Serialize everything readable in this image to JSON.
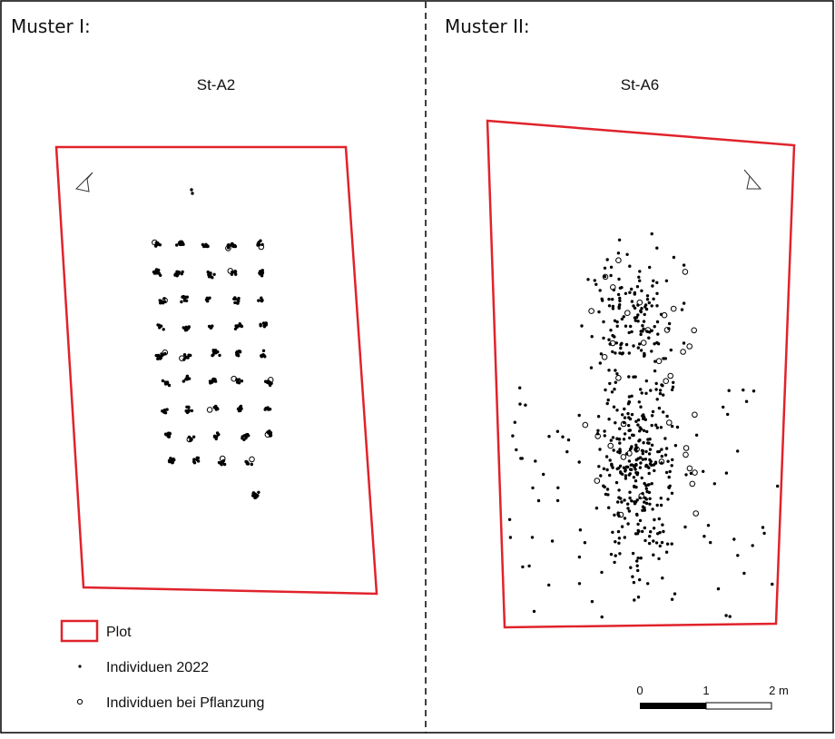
{
  "panels": [
    {
      "heading": "Muster I:",
      "plot_label": "St-A2"
    },
    {
      "heading": "Muster II:",
      "plot_label": "St-A6"
    }
  ],
  "legend": {
    "plot": "Plot",
    "individuals_2022": "Individuen 2022",
    "individuals_planting": "Individuen bei Pflanzung"
  },
  "scale_bar": {
    "ticks": [
      "0",
      "1",
      "2 m"
    ]
  },
  "colors": {
    "plot_outline": "#e0232b",
    "points": "#000000",
    "frame": "#000000"
  },
  "icons": [
    "north-arrow-icon",
    "north-arrow-icon"
  ]
}
